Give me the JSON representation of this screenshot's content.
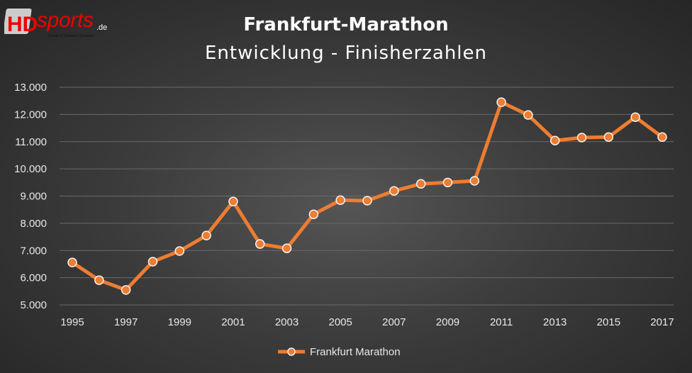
{
  "logo": {
    "text": "HDsports.de",
    "tagline": "Home of Distance Runners"
  },
  "chart_data": {
    "type": "line",
    "title": "Frankfurt-Marathon",
    "subtitle": "Entwicklung - Finisherzahlen",
    "xlabel": "",
    "ylabel": "",
    "x": [
      1995,
      1996,
      1997,
      1998,
      1999,
      2000,
      2001,
      2002,
      2003,
      2004,
      2005,
      2006,
      2007,
      2008,
      2009,
      2010,
      2011,
      2012,
      2013,
      2014,
      2015,
      2016,
      2017
    ],
    "x_tick_labels": [
      "1995",
      "1997",
      "1999",
      "2001",
      "2003",
      "2005",
      "2007",
      "2009",
      "2011",
      "2013",
      "2015",
      "2017"
    ],
    "y_tick_labels": [
      "5.000",
      "6.000",
      "7.000",
      "8.000",
      "9.000",
      "10.000",
      "11.000",
      "12.000",
      "13.000"
    ],
    "ylim": [
      5000,
      13000
    ],
    "grid": "horizontal",
    "legend": "bottom",
    "series": [
      {
        "name": "Frankfurt Marathon",
        "color": "#ed7d31",
        "values": [
          6560,
          5910,
          5550,
          6590,
          6980,
          7550,
          8800,
          7240,
          7080,
          8330,
          8850,
          8830,
          9190,
          9450,
          9500,
          9560,
          12450,
          11980,
          11040,
          11150,
          11170,
          11900,
          11170
        ]
      }
    ]
  }
}
